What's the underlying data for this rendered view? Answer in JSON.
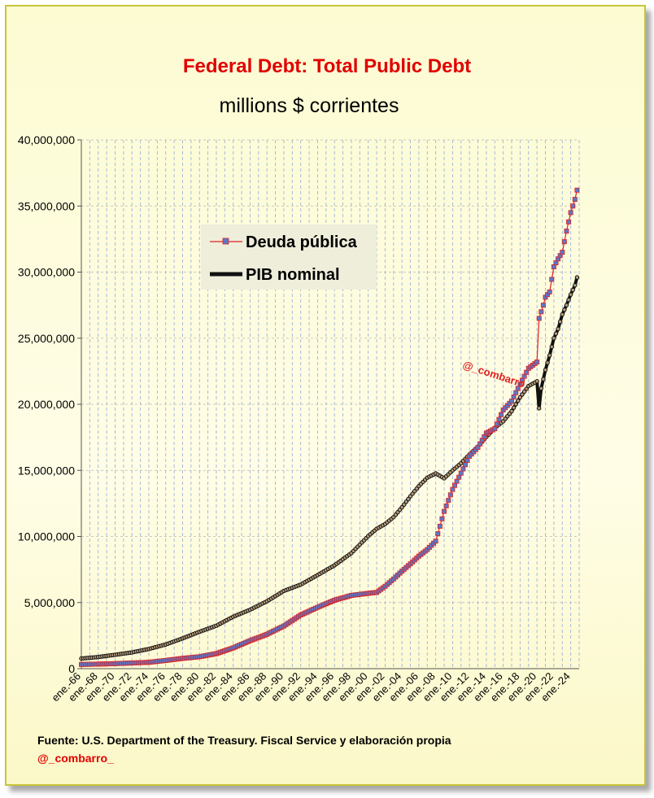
{
  "header": {
    "title": "Federal Debt: Total Public Debt",
    "subtitle": "millions $ corrientes"
  },
  "footer": {
    "source": "Fuente: U.S. Department of the Treasury. Fiscal Service y elaboración propia",
    "handle": "@_combarro_"
  },
  "watermark": "@_combarro_",
  "colors": {
    "debt_line": "#e02020",
    "debt_marker": "#5a78c8",
    "gdp_line": "#111111",
    "grid": "#9fb4d9",
    "title": "#e10000"
  },
  "chart_data": {
    "type": "line",
    "title": "Federal Debt: Total Public Debt",
    "subtitle": "millions $ corrientes",
    "ylim": [
      0,
      40000000
    ],
    "yticks": [
      0,
      5000000,
      10000000,
      15000000,
      20000000,
      25000000,
      30000000,
      35000000,
      40000000
    ],
    "ytick_labels": [
      "0",
      "5,000,000",
      "10,000,000",
      "15,000,000",
      "20,000,000",
      "25,000,000",
      "30,000,000",
      "35,000,000",
      "40,000,000"
    ],
    "xlim": [
      1966,
      2025
    ],
    "xticks": [
      1966,
      1968,
      1970,
      1972,
      1974,
      1976,
      1978,
      1980,
      1982,
      1984,
      1986,
      1988,
      1990,
      1992,
      1994,
      1996,
      1998,
      2000,
      2002,
      2004,
      2006,
      2008,
      2010,
      2012,
      2014,
      2016,
      2018,
      2020,
      2022,
      2024
    ],
    "xtick_labels": [
      "ene.-66",
      "ene.-68",
      "ene.-70",
      "ene.-72",
      "ene.-74",
      "ene.-76",
      "ene.-78",
      "ene.-80",
      "ene.-82",
      "ene.-84",
      "ene.-86",
      "ene.-88",
      "ene.-90",
      "ene.-92",
      "ene.-94",
      "ene.-96",
      "ene.-98",
      "ene.-00",
      "ene.-02",
      "ene.-04",
      "ene.-06",
      "ene.-08",
      "ene.-10",
      "ene.-12",
      "ene.-14",
      "ene.-16",
      "ene.-18",
      "ene.-20",
      "ene.-22",
      "ene.-24"
    ],
    "grid": true,
    "legend_position": "top-left",
    "series": [
      {
        "name": "Deuda pública",
        "points": [
          [
            1966,
            320000
          ],
          [
            1968,
            345000
          ],
          [
            1970,
            380000
          ],
          [
            1972,
            430000
          ],
          [
            1974,
            480000
          ],
          [
            1976,
            620000
          ],
          [
            1978,
            780000
          ],
          [
            1980,
            900000
          ],
          [
            1982,
            1140000
          ],
          [
            1984,
            1570000
          ],
          [
            1986,
            2120000
          ],
          [
            1988,
            2600000
          ],
          [
            1990,
            3230000
          ],
          [
            1992,
            4060000
          ],
          [
            1994,
            4640000
          ],
          [
            1996,
            5180000
          ],
          [
            1998,
            5540000
          ],
          [
            2000,
            5700000
          ],
          [
            2001,
            5770000
          ],
          [
            2002,
            6230000
          ],
          [
            2003,
            6780000
          ],
          [
            2004,
            7380000
          ],
          [
            2005,
            7930000
          ],
          [
            2006,
            8510000
          ],
          [
            2007,
            9010000
          ],
          [
            2008,
            9650000
          ],
          [
            2009,
            11900000
          ],
          [
            2010,
            13560000
          ],
          [
            2011,
            14790000
          ],
          [
            2012,
            16070000
          ],
          [
            2013,
            16740000
          ],
          [
            2014,
            17820000
          ],
          [
            2015,
            18150000
          ],
          [
            2016,
            19570000
          ],
          [
            2017,
            20240000
          ],
          [
            2018,
            21520000
          ],
          [
            2019,
            22720000
          ],
          [
            2020.0,
            23200000
          ],
          [
            2020.25,
            26500000
          ],
          [
            2020.75,
            27500000
          ],
          [
            2021,
            28100000
          ],
          [
            2021.5,
            28500000
          ],
          [
            2022,
            30400000
          ],
          [
            2022.5,
            31000000
          ],
          [
            2023,
            31500000
          ],
          [
            2023.5,
            33100000
          ],
          [
            2024,
            34500000
          ],
          [
            2024.5,
            35500000
          ],
          [
            2024.75,
            36200000
          ]
        ]
      },
      {
        "name": "PIB nominal",
        "points": [
          [
            1966,
            770000
          ],
          [
            1968,
            880000
          ],
          [
            1970,
            1050000
          ],
          [
            1972,
            1230000
          ],
          [
            1974,
            1490000
          ],
          [
            1976,
            1830000
          ],
          [
            1978,
            2290000
          ],
          [
            1980,
            2790000
          ],
          [
            1982,
            3250000
          ],
          [
            1984,
            3930000
          ],
          [
            1986,
            4460000
          ],
          [
            1988,
            5100000
          ],
          [
            1990,
            5880000
          ],
          [
            1992,
            6360000
          ],
          [
            1994,
            7080000
          ],
          [
            1996,
            7820000
          ],
          [
            1998,
            8740000
          ],
          [
            2000,
            10030000
          ],
          [
            2001,
            10580000
          ],
          [
            2002,
            10940000
          ],
          [
            2003,
            11460000
          ],
          [
            2004,
            12210000
          ],
          [
            2005,
            13040000
          ],
          [
            2006,
            13810000
          ],
          [
            2007,
            14450000
          ],
          [
            2008,
            14770000
          ],
          [
            2009,
            14400000
          ],
          [
            2010,
            15000000
          ],
          [
            2011,
            15540000
          ],
          [
            2012,
            16200000
          ],
          [
            2013,
            16790000
          ],
          [
            2014,
            17530000
          ],
          [
            2015,
            18220000
          ],
          [
            2016,
            18710000
          ],
          [
            2017,
            19480000
          ],
          [
            2018,
            20530000
          ],
          [
            2019,
            21380000
          ],
          [
            2020.0,
            21740000
          ],
          [
            2020.25,
            19700000
          ],
          [
            2020.5,
            21200000
          ],
          [
            2021,
            22600000
          ],
          [
            2021.5,
            23700000
          ],
          [
            2022,
            25000000
          ],
          [
            2022.5,
            25700000
          ],
          [
            2023,
            26800000
          ],
          [
            2023.5,
            27500000
          ],
          [
            2024,
            28300000
          ],
          [
            2024.5,
            29000000
          ],
          [
            2024.75,
            29600000
          ]
        ]
      }
    ]
  }
}
